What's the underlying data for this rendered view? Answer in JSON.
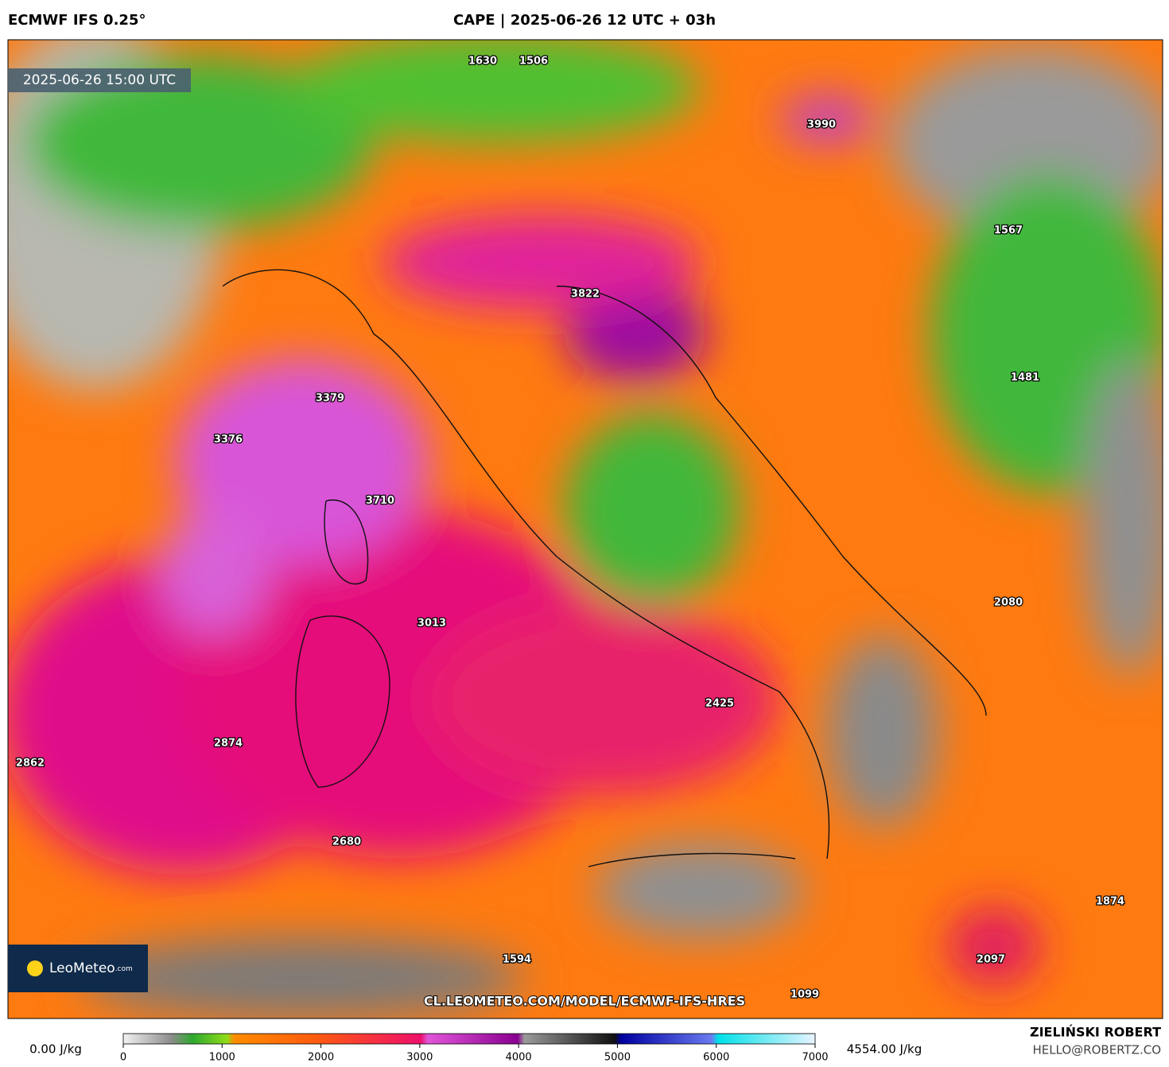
{
  "header": {
    "model": "ECMWF IFS 0.25°",
    "title": "CAPE | 2025-06-26 12 UTC + 03h"
  },
  "map": {
    "valid_time": "2025-06-26 15:00 UTC",
    "values": [
      1630,
      1506,
      3990,
      1567,
      3822,
      3379,
      3376,
      3710,
      1481,
      2080,
      3013,
      2425,
      2874,
      2862,
      2680,
      1874,
      1594,
      2097,
      1099
    ],
    "logo": "LeoMeteo",
    "logo_suffix": ".com",
    "url": "CL.LEOMETEO.COM/MODEL/ECMWF-IFS-HRES"
  },
  "legend": {
    "min_label": "0.00 J/kg",
    "max_label": "4554.00 J/kg",
    "ticks": [
      0,
      1000,
      2000,
      3000,
      4000,
      5000,
      6000,
      7000
    ]
  },
  "footer": {
    "author": "ZIELIŃSKI ROBERT",
    "email": "HELLO@ROBERTZ.CO"
  }
}
